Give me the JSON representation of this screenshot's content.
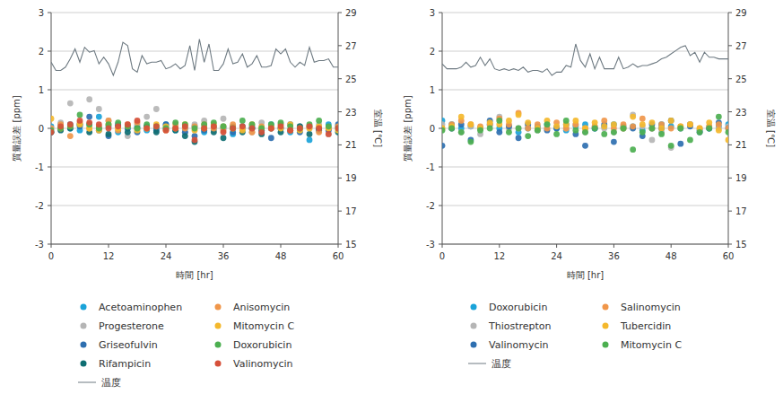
{
  "chart_data": [
    {
      "type": "scatter",
      "xlabel": "時間 [hr]",
      "ylabel": "質量誤差 [ppm]",
      "y2label": "室温 [℃]",
      "xlim": [
        0,
        60
      ],
      "xticks": [
        0,
        12,
        24,
        36,
        48,
        60
      ],
      "ylim": [
        -3,
        3
      ],
      "yticks": [
        -3,
        -2,
        -1,
        0,
        1,
        2,
        3
      ],
      "y2lim": [
        15,
        29
      ],
      "y2ticks": [
        15,
        17,
        19,
        21,
        23,
        25,
        27,
        29
      ],
      "grid": true,
      "legend": "bottom",
      "x": [
        0,
        2,
        4,
        6,
        8,
        10,
        12,
        14,
        16,
        18,
        20,
        22,
        24,
        26,
        28,
        30,
        32,
        34,
        36,
        38,
        40,
        42,
        44,
        46,
        48,
        50,
        52,
        54,
        56,
        58,
        60
      ],
      "series": [
        {
          "name": "Acetoaminophen",
          "color": "#1aa3d9",
          "marker": "circle",
          "values": [
            0.05,
            0.1,
            0.0,
            -0.05,
            0.1,
            0.3,
            0.05,
            -0.1,
            0.0,
            0.05,
            -0.05,
            0.0,
            0.1,
            -0.05,
            0.0,
            0.05,
            -0.1,
            0.0,
            0.05,
            -0.15,
            0.0,
            0.05,
            -0.05,
            0.1,
            0.0,
            -0.1,
            0.05,
            -0.3,
            0.0,
            0.1,
            0.05
          ]
        },
        {
          "name": "Progesterone",
          "color": "#b5b5b5",
          "marker": "circle",
          "values": [
            0.0,
            0.15,
            0.65,
            0.1,
            0.75,
            0.5,
            0.2,
            0.1,
            -0.2,
            0.1,
            0.3,
            0.5,
            0.05,
            0.0,
            -0.1,
            0.1,
            0.2,
            -0.05,
            0.25,
            0.0,
            0.05,
            -0.1,
            0.15,
            0.0,
            0.1,
            -0.05,
            0.05,
            0.0,
            0.1,
            -0.15,
            0.05
          ]
        },
        {
          "name": "Griseofulvin",
          "color": "#2e6fb0",
          "marker": "circle",
          "values": [
            -0.1,
            0.0,
            0.1,
            0.05,
            0.3,
            -0.05,
            -0.2,
            0.1,
            0.0,
            -0.1,
            0.05,
            -0.05,
            0.1,
            0.0,
            -0.1,
            -0.2,
            -0.05,
            0.05,
            0.0,
            -0.1,
            0.05,
            0.0,
            -0.05,
            -0.25,
            0.0,
            0.1,
            -0.1,
            0.05,
            0.0,
            -0.05,
            0.1
          ]
        },
        {
          "name": "Rifampicin",
          "color": "#0f6e72",
          "marker": "circle",
          "values": [
            -0.1,
            -0.05,
            0.0,
            0.1,
            -0.1,
            0.0,
            -0.15,
            0.05,
            -0.1,
            0.0,
            0.05,
            -0.1,
            0.0,
            -0.05,
            -0.2,
            -0.35,
            0.0,
            -0.1,
            -0.25,
            0.05,
            -0.1,
            0.0,
            -0.15,
            0.0,
            -0.1,
            -0.05,
            0.05,
            -0.15,
            -0.05,
            0.0,
            -0.1
          ]
        },
        {
          "name": "Anisomycin",
          "color": "#f0964a",
          "marker": "circle",
          "values": [
            0.0,
            0.1,
            -0.2,
            0.15,
            0.0,
            0.05,
            0.2,
            -0.05,
            0.1,
            0.15,
            0.0,
            0.05,
            -0.05,
            0.1,
            0.0,
            0.05,
            0.1,
            0.0,
            -0.05,
            0.1,
            0.0,
            -0.1,
            0.05,
            0.0,
            0.1,
            -0.05,
            0.0,
            0.05,
            -0.1,
            0.0,
            0.05
          ]
        },
        {
          "name": "Mitomycin C",
          "color": "#f4b82c",
          "marker": "circle",
          "values": [
            0.25,
            0.0,
            0.05,
            0.1,
            0.0,
            -0.05,
            0.1,
            0.0,
            0.05,
            -0.05,
            0.0,
            0.1,
            0.05,
            0.0,
            0.1,
            -0.05,
            0.0,
            0.1,
            0.05,
            0.0,
            -0.05,
            0.1,
            0.0,
            0.05,
            0.0,
            0.1,
            -0.05,
            0.0,
            0.05,
            0.0,
            -0.05
          ]
        },
        {
          "name": "Doxorubicin",
          "color": "#4caf50",
          "marker": "circle",
          "values": [
            -0.05,
            0.0,
            0.05,
            0.35,
            0.1,
            0.0,
            0.1,
            0.15,
            0.05,
            0.0,
            0.1,
            0.05,
            0.0,
            0.15,
            0.1,
            0.0,
            0.1,
            0.15,
            0.05,
            0.0,
            0.2,
            0.1,
            0.0,
            0.1,
            0.15,
            0.05,
            0.0,
            0.1,
            0.2,
            0.05,
            0.0
          ]
        },
        {
          "name": "Valinomycin",
          "color": "#d6503a",
          "marker": "circle",
          "values": [
            -0.1,
            0.05,
            0.1,
            0.2,
            0.15,
            0.1,
            0.0,
            0.05,
            0.1,
            0.2,
            0.0,
            0.05,
            -0.05,
            0.0,
            0.05,
            -0.3,
            0.0,
            0.05,
            -0.1,
            0.0,
            0.05,
            0.0,
            -0.1,
            0.0,
            0.05,
            -0.05,
            0.0,
            0.05,
            0.0,
            -0.15,
            0.0
          ]
        },
        {
          "name": "温度",
          "type": "line",
          "axis": "y2",
          "color": "#6e7a82",
          "line_style": "solid",
          "x": [
            0,
            1,
            2,
            3,
            4,
            5,
            6,
            7,
            8,
            9,
            10,
            11,
            12,
            13,
            14,
            15,
            16,
            17,
            18,
            19,
            20,
            21,
            22,
            23,
            24,
            25,
            26,
            27,
            28,
            29,
            30,
            31,
            32,
            33,
            34,
            35,
            36,
            37,
            38,
            39,
            40,
            41,
            42,
            43,
            44,
            45,
            46,
            47,
            48,
            49,
            50,
            51,
            52,
            53,
            54,
            55,
            56,
            57,
            58,
            59,
            60
          ],
          "values": [
            26.0,
            25.5,
            25.5,
            25.7,
            26.2,
            26.8,
            26.0,
            26.9,
            26.6,
            26.7,
            25.9,
            26.3,
            25.9,
            25.2,
            26.0,
            27.2,
            27.0,
            25.6,
            25.4,
            26.4,
            25.9,
            26.0,
            26.0,
            26.1,
            25.6,
            25.7,
            25.9,
            25.6,
            25.8,
            27.0,
            25.5,
            27.4,
            26.0,
            27.1,
            25.5,
            25.5,
            25.9,
            26.8,
            25.9,
            26.0,
            26.5,
            25.7,
            25.9,
            26.4,
            25.7,
            25.7,
            25.8,
            26.8,
            26.5,
            26.8,
            26.0,
            25.7,
            26.0,
            25.8,
            26.9,
            26.0,
            26.1,
            26.1,
            26.2,
            25.7,
            25.7
          ]
        }
      ]
    },
    {
      "type": "scatter",
      "xlabel": "時間 [hr]",
      "ylabel": "質量誤差 [ppm]",
      "y2label": "室温 [℃]",
      "xlim": [
        0,
        60
      ],
      "xticks": [
        0,
        12,
        24,
        36,
        48,
        60
      ],
      "ylim": [
        -3,
        3
      ],
      "yticks": [
        -3,
        -2,
        -1,
        0,
        1,
        2,
        3
      ],
      "y2lim": [
        15,
        29
      ],
      "y2ticks": [
        15,
        17,
        19,
        21,
        23,
        25,
        27,
        29
      ],
      "grid": true,
      "legend": "bottom",
      "x": [
        0,
        2,
        4,
        6,
        8,
        10,
        12,
        14,
        16,
        18,
        20,
        22,
        24,
        26,
        28,
        30,
        32,
        34,
        36,
        38,
        40,
        42,
        44,
        46,
        48,
        50,
        52,
        54,
        56,
        58,
        60
      ],
      "series": [
        {
          "name": "Doxorubicin",
          "color": "#1aa3d9",
          "marker": "circle",
          "values": [
            0.2,
            0.1,
            0.0,
            0.05,
            0.0,
            0.1,
            0.0,
            0.05,
            -0.1,
            0.0,
            0.05,
            0.1,
            0.0,
            -0.05,
            0.05,
            0.1,
            0.0,
            0.05,
            0.1,
            0.0,
            0.05,
            -0.05,
            0.0,
            0.1,
            0.05,
            0.0,
            0.1,
            -0.05,
            0.0,
            0.05,
            0.1
          ]
        },
        {
          "name": "Thiostrepton",
          "color": "#b5b5b5",
          "marker": "circle",
          "values": [
            0.1,
            0.0,
            -0.1,
            0.05,
            -0.15,
            0.1,
            0.3,
            0.0,
            0.0,
            0.1,
            -0.05,
            0.0,
            0.05,
            0.0,
            0.1,
            -0.1,
            0.05,
            0.0,
            -0.1,
            0.0,
            0.35,
            0.05,
            -0.3,
            -0.1,
            -0.5,
            0.0,
            0.1,
            -0.05,
            0.05,
            0.0,
            0.05
          ]
        },
        {
          "name": "Valinomycin",
          "color": "#2e6fb0",
          "marker": "circle",
          "values": [
            -0.45,
            0.0,
            0.1,
            -0.3,
            0.0,
            0.2,
            -0.1,
            0.05,
            -0.25,
            0.1,
            0.0,
            -0.05,
            0.0,
            0.1,
            -0.15,
            -0.45,
            0.0,
            0.1,
            -0.35,
            0.05,
            0.0,
            -0.2,
            0.1,
            0.0,
            0.2,
            -0.4,
            0.05,
            -0.1,
            0.0,
            0.15,
            0.0
          ]
        },
        {
          "name": "Salinomycin",
          "color": "#f0964a",
          "marker": "circle",
          "values": [
            0.0,
            0.1,
            0.2,
            0.1,
            0.05,
            0.1,
            0.25,
            0.1,
            0.4,
            0.0,
            0.1,
            0.0,
            0.15,
            0.0,
            0.1,
            0.0,
            0.05,
            0.2,
            0.0,
            0.1,
            0.05,
            0.25,
            0.0,
            0.1,
            0.0,
            0.05,
            0.1,
            0.0,
            0.05,
            0.1,
            0.0
          ]
        },
        {
          "name": "Tubercidin",
          "color": "#f4b82c",
          "marker": "circle",
          "values": [
            0.0,
            0.05,
            0.3,
            0.1,
            0.0,
            0.15,
            0.1,
            0.2,
            0.35,
            0.15,
            0.0,
            0.2,
            0.05,
            0.1,
            0.2,
            0.0,
            0.15,
            0.05,
            0.1,
            0.0,
            0.3,
            0.1,
            0.15,
            0.0,
            0.2,
            0.05,
            0.1,
            0.0,
            0.15,
            -0.05,
            -0.3
          ]
        },
        {
          "name": "Mitomycin C",
          "color": "#4caf50",
          "marker": "circle",
          "values": [
            -0.05,
            0.0,
            -0.1,
            -0.35,
            -0.05,
            0.0,
            0.2,
            -0.1,
            0.0,
            -0.2,
            -0.05,
            0.1,
            -0.15,
            0.2,
            -0.05,
            -0.1,
            0.0,
            -0.15,
            -0.1,
            0.0,
            -0.55,
            -0.1,
            0.0,
            -0.15,
            -0.45,
            0.0,
            -0.3,
            -0.1,
            0.0,
            0.3,
            -0.1
          ]
        },
        {
          "name": "温度",
          "type": "line",
          "axis": "y2",
          "color": "#6e7a82",
          "line_style": "solid",
          "x": [
            0,
            1,
            2,
            3,
            4,
            5,
            6,
            7,
            8,
            9,
            10,
            11,
            12,
            13,
            14,
            15,
            16,
            17,
            18,
            19,
            20,
            21,
            22,
            23,
            24,
            25,
            26,
            27,
            28,
            29,
            30,
            31,
            32,
            33,
            34,
            35,
            36,
            37,
            38,
            39,
            40,
            41,
            42,
            43,
            44,
            45,
            46,
            47,
            48,
            49,
            50,
            51,
            52,
            53,
            54,
            55,
            56,
            57,
            58,
            59,
            60
          ],
          "values": [
            25.9,
            25.6,
            25.6,
            25.6,
            25.7,
            26.0,
            25.7,
            25.8,
            26.3,
            25.8,
            26.2,
            25.6,
            25.5,
            25.6,
            25.5,
            25.6,
            25.5,
            25.7,
            25.4,
            25.5,
            25.5,
            25.4,
            25.6,
            25.2,
            25.4,
            25.4,
            25.8,
            25.7,
            27.1,
            26.1,
            25.7,
            26.5,
            25.6,
            26.3,
            25.6,
            25.6,
            25.6,
            26.3,
            25.6,
            25.7,
            25.9,
            25.7,
            25.8,
            25.8,
            25.9,
            26.0,
            26.2,
            26.3,
            26.5,
            26.7,
            26.9,
            27.0,
            26.4,
            26.6,
            26.0,
            26.6,
            26.3,
            26.3,
            26.2,
            26.2,
            26.2
          ]
        }
      ]
    }
  ]
}
